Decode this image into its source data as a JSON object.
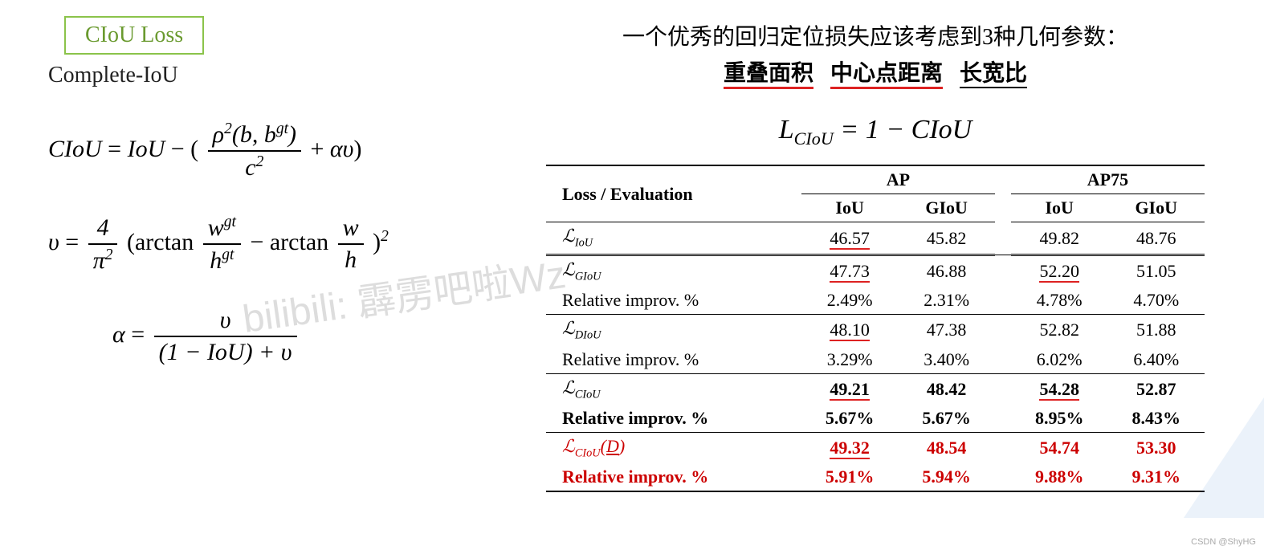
{
  "left": {
    "title": "CIoU Loss",
    "subtitle": "Complete-IoU",
    "title_border_color": "#8bc34a",
    "title_text_color": "#6a9a2f"
  },
  "right_header": {
    "line1": "一个优秀的回归定位损失应该考虑到3种几何参数：",
    "term1": "重叠面积",
    "term2": "中心点距离",
    "term3": "长宽比"
  },
  "lciou_eq": "L_{CIoU} = 1 − CIoU",
  "watermark": "bilibili: 霹雳吧啦Wz",
  "attr": "CSDN @ShyHG",
  "colors": {
    "underline_red": "#d22",
    "text_red": "#cc0000",
    "border": "#000000",
    "background": "#ffffff"
  },
  "formulas": {
    "ciou": "CIoU = IoU − ( ρ²(b, b^{gt}) / c² + αυ )",
    "v": "υ = 4/π² · ( arctan(w^{gt}/h^{gt}) − arctan(w/h) )²",
    "alpha": "α = υ / ( (1 − IoU) + υ )"
  },
  "table": {
    "header_loss": "Loss / Evaluation",
    "group_ap": "AP",
    "group_ap75": "AP75",
    "sub_iou": "IoU",
    "sub_giou": "GIoU",
    "rows": [
      {
        "label": "ℒ_IoU",
        "ap_iou": "46.57",
        "ap_giou": "45.82",
        "ap75_iou": "49.82",
        "ap75_giou": "48.76",
        "style": "plain",
        "highlight": [
          "ap_iou"
        ]
      },
      {
        "label": "ℒ_GIoU",
        "ap_iou": "47.73",
        "ap_giou": "46.88",
        "ap75_iou": "52.20",
        "ap75_giou": "51.05",
        "style": "plain",
        "highlight": [
          "ap_iou",
          "ap75_iou"
        ],
        "section": true
      },
      {
        "label": "Relative improv. %",
        "ap_iou": "2.49%",
        "ap_giou": "2.31%",
        "ap75_iou": "4.78%",
        "ap75_giou": "4.70%",
        "style": "plain"
      },
      {
        "label": "ℒ_DIoU",
        "ap_iou": "48.10",
        "ap_giou": "47.38",
        "ap75_iou": "52.82",
        "ap75_giou": "51.88",
        "style": "plain",
        "highlight": [
          "ap_iou"
        ],
        "section": true
      },
      {
        "label": "Relative improv. %",
        "ap_iou": "3.29%",
        "ap_giou": "3.40%",
        "ap75_iou": "6.02%",
        "ap75_giou": "6.40%",
        "style": "plain"
      },
      {
        "label": "ℒ_CIoU",
        "ap_iou": "49.21",
        "ap_giou": "48.42",
        "ap75_iou": "54.28",
        "ap75_giou": "52.87",
        "style": "bold",
        "highlight": [
          "ap_iou",
          "ap75_iou"
        ],
        "section": true
      },
      {
        "label": "Relative improv. %",
        "ap_iou": "5.67%",
        "ap_giou": "5.67%",
        "ap75_iou": "8.95%",
        "ap75_giou": "8.43%",
        "style": "bold"
      },
      {
        "label": "ℒ_CIoU(D)",
        "ap_iou": "49.32",
        "ap_giou": "48.54",
        "ap75_iou": "54.74",
        "ap75_giou": "53.30",
        "style": "red",
        "highlight": [
          "ap_iou"
        ],
        "section": true
      },
      {
        "label": "Relative improv. %",
        "ap_iou": "5.91%",
        "ap_giou": "5.94%",
        "ap75_iou": "9.88%",
        "ap75_giou": "9.31%",
        "style": "redbold"
      }
    ]
  }
}
